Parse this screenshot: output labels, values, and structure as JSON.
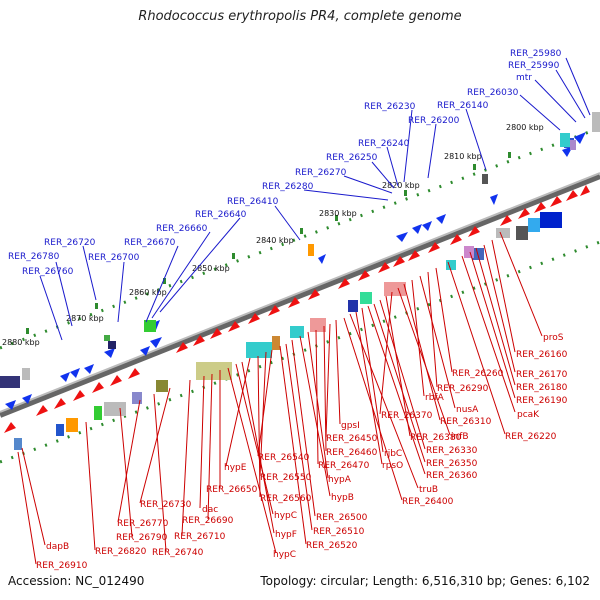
{
  "title": "Rhodococcus erythropolis PR4, complete genome",
  "footer": {
    "accession": "Accession: NC_012490",
    "topology": "Topology: circular; Length: 6,516,310 bp; Genes: 6,102"
  },
  "colors": {
    "forward_label": "#1a1acc",
    "reverse_label": "#cc0000",
    "backbone": "#7a7a7a",
    "tick_dots": "#2e8b2e",
    "forward_gene": "#1133ee",
    "reverse_gene": "#ee1111"
  },
  "kbp_labels": [
    "2800 kbp",
    "2810 kbp",
    "2820 kbp",
    "2830 kbp",
    "2840 kbp",
    "2850 kbp",
    "2860 kbp",
    "2870 kbp",
    "2880 kbp"
  ],
  "forward_labels": [
    "RER_25980",
    "RER_25990",
    "mtr",
    "RER_26030",
    "RER_26140",
    "RER_26200",
    "RER_26230",
    "RER_26240",
    "RER_26250",
    "RER_26270",
    "RER_26280",
    "RER_26410",
    "RER_26640",
    "RER_26660",
    "RER_26670",
    "RER_26700",
    "RER_26720",
    "RER_26780",
    "RER_26760"
  ],
  "reverse_labels": [
    "proS",
    "RER_26160",
    "RER_26170",
    "RER_26180",
    "RER_26190",
    "pcaK",
    "RER_26220",
    "RER_26260",
    "RER_26290",
    "nusA",
    "rbfA",
    "RER_26310",
    "infB",
    "RER_26370",
    "RER_26380",
    "RER_26330",
    "RER_26350",
    "RER_26360",
    "rjbC",
    "rpsO",
    "truB",
    "RER_26400",
    "gpsI",
    "RER_26450",
    "RER_26460",
    "RER_26470",
    "hypA",
    "hypB",
    "RER_26500",
    "RER_26510",
    "RER_26520",
    "RER_26540",
    "RER_26550",
    "RER_26560",
    "hypE",
    "hypF",
    "hypC",
    "hypC",
    "RER_26650",
    "RER_26690",
    "dac",
    "RER_26710",
    "RER_26730",
    "RER_26740",
    "RER_26770",
    "RER_26790",
    "RER_26820",
    "dapB",
    "RER_26910"
  ]
}
